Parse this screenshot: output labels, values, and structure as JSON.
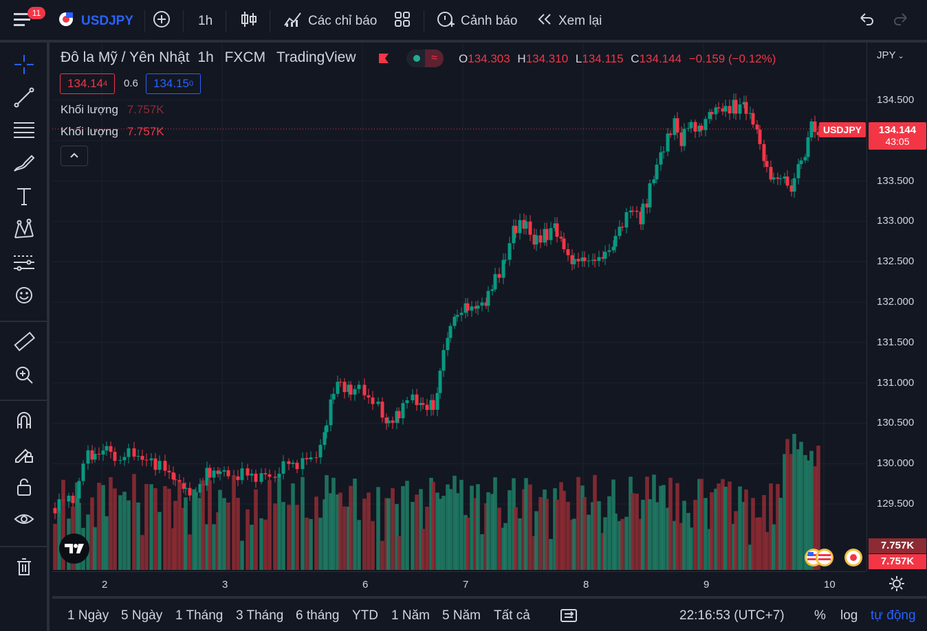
{
  "topbar": {
    "notification_count": "11",
    "symbol": "USDJPY",
    "interval": "1h",
    "indicators_label": "Các chỉ báo",
    "alerts_label": "Cảnh báo",
    "replay_label": "Xem lại"
  },
  "legend": {
    "title": "Đô la Mỹ / Yên Nhật",
    "interval": "1h",
    "exchange": "FXCM",
    "source": "TradingView",
    "o_label": "O",
    "o_value": "134.303",
    "h_label": "H",
    "h_value": "134.310",
    "l_label": "L",
    "l_value": "134.115",
    "c_label": "C",
    "c_value": "134.144",
    "change": "−0.159 (−0.12%)",
    "sell_price_main": "134.14",
    "sell_price_sup": "4",
    "spread": "0.6",
    "buy_price_main": "134.15",
    "buy_price_sup": "0",
    "volume_label_1": "Khối lượng",
    "volume_value_1": "7.757K",
    "volume_label_2": "Khối lượng",
    "volume_value_2": "7.757K"
  },
  "price_axis": {
    "currency": "JPY",
    "ticks": [
      "134.500",
      "134.000",
      "133.500",
      "133.000",
      "132.500",
      "132.000",
      "131.500",
      "131.000",
      "130.500",
      "130.000",
      "129.500"
    ],
    "current_price": "134.144",
    "countdown": "43:05",
    "symbol_tag": "USDJPY",
    "volume_tag_1": "7.757K",
    "volume_tag_2": "7.757K"
  },
  "time_axis": {
    "ticks": [
      "2",
      "3",
      "6",
      "7",
      "8",
      "9",
      "10"
    ]
  },
  "bottombar": {
    "ranges": [
      "1 Ngày",
      "5 Ngày",
      "1 Tháng",
      "3 Tháng",
      "6 tháng",
      "YTD",
      "1 Năm",
      "5 Năm",
      "Tất cả"
    ],
    "clock": "22:16:53 (UTC+7)",
    "percent": "%",
    "log": "log",
    "auto": "tự động"
  },
  "colors": {
    "bull": "#089981",
    "bear": "#f23645",
    "bull_vol": "#1f7a63",
    "bear_vol": "#8c2b33",
    "accent": "#2962ff",
    "background": "#131722"
  },
  "icons": [
    "menu-icon",
    "plus-circle-icon",
    "candles-icon",
    "indicators-icon",
    "templates-icon",
    "alarm-icon",
    "replay-icon",
    "undo-icon",
    "redo-icon",
    "crosshair-icon",
    "trendline-icon",
    "fib-icon",
    "brush-icon",
    "text-icon",
    "pattern-icon",
    "forecast-icon",
    "emoji-icon",
    "ruler-icon",
    "zoom-icon",
    "magnet-icon",
    "lock-draw-icon",
    "lock-icon",
    "eye-icon",
    "trash-icon",
    "settings-icon",
    "compare-icon"
  ]
}
